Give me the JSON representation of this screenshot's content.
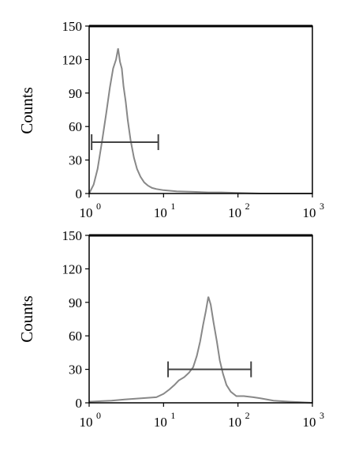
{
  "chart_data": [
    {
      "type": "line",
      "title": "",
      "xlabel": "",
      "ylabel": "Counts",
      "x_scale": "log",
      "xlim": [
        1,
        1000
      ],
      "ylim": [
        0,
        150
      ],
      "y_ticks": [
        "0",
        "30",
        "60",
        "90",
        "120",
        "150"
      ],
      "x_ticks": [
        {
          "base": "10",
          "exp": "0"
        },
        {
          "base": "10",
          "exp": "1"
        },
        {
          "base": "10",
          "exp": "2"
        },
        {
          "base": "10",
          "exp": "3"
        }
      ],
      "grid": false,
      "series": [
        {
          "x": [
            1.0,
            1.15,
            1.3,
            1.5,
            1.7,
            1.9,
            2.1,
            2.3,
            2.45,
            2.6,
            2.75,
            2.9,
            3.1,
            3.3,
            3.6,
            4.0,
            4.4,
            4.9,
            5.5,
            6.2,
            7.0,
            8.0,
            10,
            15,
            25,
            40,
            60,
            100,
            200,
            400,
            1000
          ],
          "y": [
            0,
            8,
            22,
            48,
            72,
            95,
            112,
            120,
            130,
            118,
            112,
            96,
            82,
            66,
            48,
            32,
            22,
            15,
            10,
            7,
            5,
            4,
            3,
            2,
            1.5,
            1,
            1,
            0.5,
            0,
            0,
            0
          ]
        }
      ],
      "marker_gate": {
        "x_start": 1.08,
        "x_end": 8.5,
        "y": 46
      }
    },
    {
      "type": "line",
      "title": "",
      "xlabel": "",
      "ylabel": "Counts",
      "x_scale": "log",
      "xlim": [
        1,
        1000
      ],
      "ylim": [
        0,
        150
      ],
      "y_ticks": [
        "0",
        "30",
        "60",
        "90",
        "120",
        "150"
      ],
      "x_ticks": [
        {
          "base": "10",
          "exp": "0"
        },
        {
          "base": "10",
          "exp": "1"
        },
        {
          "base": "10",
          "exp": "2"
        },
        {
          "base": "10",
          "exp": "3"
        }
      ],
      "grid": false,
      "series": [
        {
          "x": [
            1.0,
            2.0,
            3.0,
            5.0,
            8.0,
            10,
            12,
            14,
            16,
            19,
            22,
            25,
            28,
            31,
            34,
            37,
            40,
            43,
            47,
            52,
            57,
            63,
            70,
            80,
            95,
            120,
            160,
            200,
            300,
            500,
            1000
          ],
          "y": [
            1,
            2,
            3,
            4,
            5,
            8,
            12,
            16,
            20,
            23,
            27,
            32,
            42,
            55,
            70,
            82,
            95,
            88,
            72,
            55,
            38,
            26,
            16,
            10,
            6,
            6,
            5,
            4,
            2,
            1,
            0
          ]
        }
      ],
      "marker_gate": {
        "x_start": 11.5,
        "x_end": 150,
        "y": 30
      }
    }
  ]
}
